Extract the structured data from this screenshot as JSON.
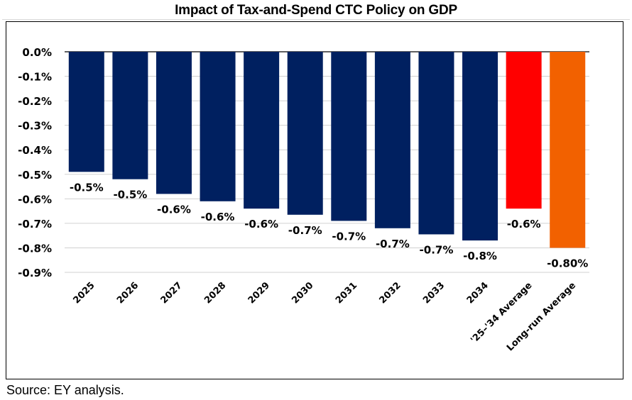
{
  "chart_data": {
    "type": "bar",
    "title": "Impact of Tax-and-Spend CTC Policy on GDP",
    "xlabel": "",
    "ylabel": "",
    "ylim": [
      -0.9,
      0.0
    ],
    "yticks": [
      0.0,
      -0.1,
      -0.2,
      -0.3,
      -0.4,
      -0.5,
      -0.6,
      -0.7,
      -0.8,
      -0.9
    ],
    "ytick_labels": [
      "0.0%",
      "-0.1%",
      "-0.2%",
      "-0.3%",
      "-0.4%",
      "-0.5%",
      "-0.6%",
      "-0.7%",
      "-0.8%",
      "-0.9%"
    ],
    "grid": true,
    "legend": "none",
    "categories": [
      "2025",
      "2026",
      "2027",
      "2028",
      "2029",
      "2030",
      "2031",
      "2032",
      "2033",
      "2034",
      "'25–'34 Average",
      "Long-run Average"
    ],
    "values": [
      -0.49,
      -0.52,
      -0.58,
      -0.61,
      -0.64,
      -0.665,
      -0.69,
      -0.72,
      -0.745,
      -0.77,
      -0.64,
      -0.8
    ],
    "data_labels": [
      "-0.5%",
      "-0.5%",
      "-0.6%",
      "-0.6%",
      "-0.6%",
      "-0.7%",
      "-0.7%",
      "-0.7%",
      "-0.7%",
      "-0.8%",
      "-0.6%",
      "-0.80%"
    ],
    "bar_colors": [
      "#002060",
      "#002060",
      "#002060",
      "#002060",
      "#002060",
      "#002060",
      "#002060",
      "#002060",
      "#002060",
      "#002060",
      "#ff0000",
      "#f26100"
    ],
    "units": "percent"
  },
  "footer": {
    "source": "Source: EY analysis."
  }
}
